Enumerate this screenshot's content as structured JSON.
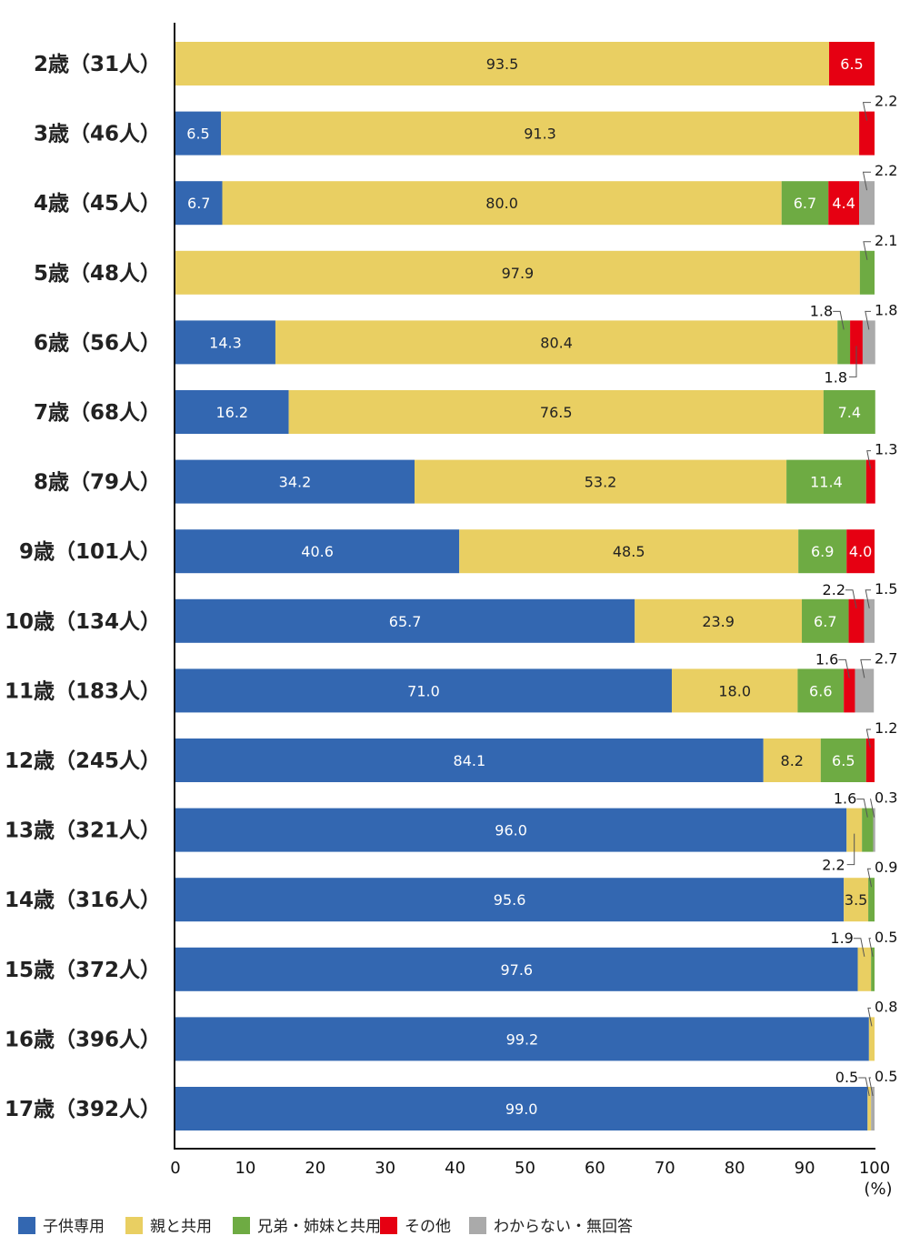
{
  "chart_data": {
    "type": "bar",
    "orientation": "horizontal",
    "stacked": true,
    "categories": [
      "2歳（31人）",
      "3歳（46人）",
      "4歳（45人）",
      "5歳（48人）",
      "6歳（56人）",
      "7歳（68人）",
      "8歳（79人）",
      "9歳（101人）",
      "10歳（134人）",
      "11歳（183人）",
      "12歳（245人）",
      "13歳（321人）",
      "14歳（316人）",
      "15歳（372人）",
      "16歳（396人）",
      "17歳（392人）"
    ],
    "series": [
      {
        "name": "子供専用",
        "color": "#3367b1",
        "values": [
          0,
          6.5,
          6.7,
          0,
          14.3,
          16.2,
          34.2,
          40.6,
          65.7,
          71.0,
          84.1,
          96.0,
          95.6,
          97.6,
          99.2,
          99.0
        ]
      },
      {
        "name": "親と共用",
        "color": "#e9cf62",
        "values": [
          93.5,
          91.3,
          80.0,
          97.9,
          80.4,
          76.5,
          53.2,
          48.5,
          23.9,
          18.0,
          8.2,
          2.2,
          3.5,
          1.9,
          0.8,
          0.5
        ]
      },
      {
        "name": "兄弟・姉妹と共用",
        "color": "#6eab43",
        "values": [
          0,
          0,
          6.7,
          2.1,
          1.8,
          7.4,
          11.4,
          6.9,
          6.7,
          6.6,
          6.5,
          1.6,
          0.9,
          0.5,
          0,
          0
        ]
      },
      {
        "name": "その他",
        "color": "#e60012",
        "values": [
          6.5,
          2.2,
          4.4,
          0,
          1.8,
          0,
          1.3,
          4.0,
          2.2,
          1.6,
          1.2,
          0,
          0,
          0,
          0,
          0
        ]
      },
      {
        "name": "わからない・無回答",
        "color": "#aaaaaa",
        "values": [
          0,
          0,
          2.2,
          0,
          1.8,
          0,
          0,
          0,
          1.5,
          2.7,
          0,
          0.3,
          0,
          0,
          0,
          0.5
        ]
      }
    ],
    "xlim": [
      0,
      100
    ],
    "xticks": [
      "0",
      "10",
      "20",
      "30",
      "40",
      "50",
      "60",
      "70",
      "80",
      "90",
      "100"
    ],
    "xunit": "(%)",
    "legend_position": "bottom-left",
    "grid": false
  }
}
